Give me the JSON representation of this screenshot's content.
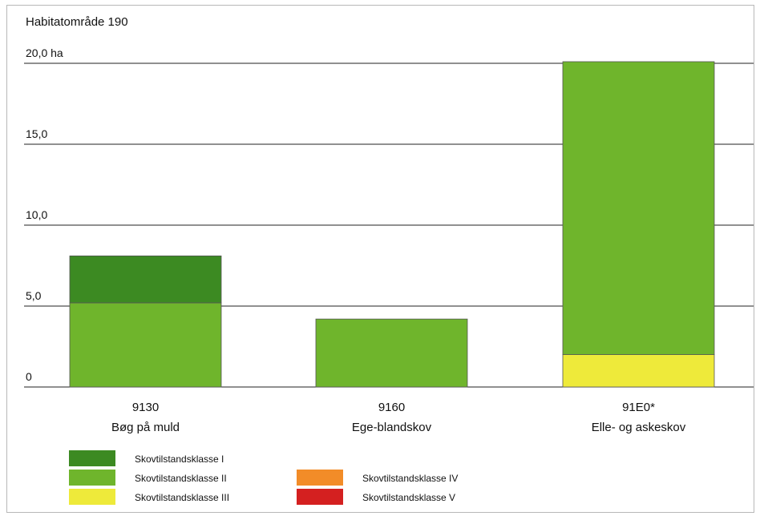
{
  "chart_data": {
    "type": "bar",
    "stacked": true,
    "title": "Habitatområde 190",
    "y_ticks": [
      {
        "value": 0,
        "label": "0"
      },
      {
        "value": 5,
        "label": "5,0"
      },
      {
        "value": 10,
        "label": "10,0"
      },
      {
        "value": 15,
        "label": "15,0"
      },
      {
        "value": 20,
        "label": "20,0 ha"
      }
    ],
    "ylim": [
      0,
      20
    ],
    "grid": true,
    "categories": [
      {
        "code": "9130",
        "name": "Bøg på muld"
      },
      {
        "code": "9160",
        "name": "Ege-blandskov"
      },
      {
        "code": "91E0*",
        "name": "Elle- og askeskov"
      }
    ],
    "series": [
      {
        "name": "Skovtilstandsklasse I",
        "color": "#3c8a22",
        "values": [
          2.9,
          0,
          0
        ]
      },
      {
        "name": "Skovtilstandsklasse II",
        "color": "#6fb52c",
        "values": [
          5.2,
          4.2,
          18.1
        ]
      },
      {
        "name": "Skovtilstandsklasse III",
        "color": "#eeea3a",
        "values": [
          0,
          0,
          2.0
        ]
      },
      {
        "name": "Skovtilstandsklasse IV",
        "color": "#f28c28",
        "values": [
          0,
          0,
          0
        ]
      },
      {
        "name": "Skovtilstandsklasse V",
        "color": "#d42020",
        "values": [
          0,
          0,
          0
        ]
      }
    ],
    "legend_position": "bottom-left"
  }
}
